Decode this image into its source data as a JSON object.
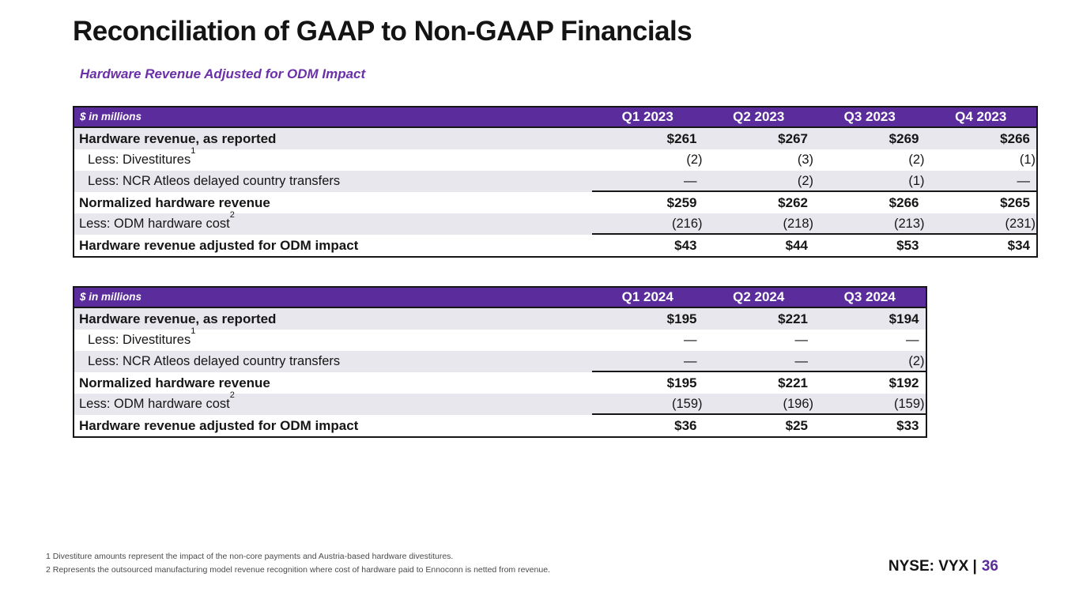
{
  "slide": {
    "title": "Reconciliation of GAAP to Non-GAAP Financials",
    "subtitle": "Hardware Revenue Adjusted for ODM Impact",
    "footnotes": [
      "1 Divestiture amounts represent the impact of the non-core payments and Austria-based hardware divestitures.",
      "2 Represents the outsourced manufacturing model revenue recognition where cost of hardware paid to Ennoconn is netted from revenue."
    ],
    "footer": {
      "ticker": "NYSE: VYX |",
      "page": "36"
    }
  },
  "colors": {
    "brand_purple": "#5B2D9C",
    "subtitle_purple": "#6B2FA8",
    "row_alt": "#E8E7ED",
    "border": "#161616",
    "footnote_gray": "#4a4a4a"
  },
  "tables": [
    {
      "unit_label": "$ in millions",
      "columns": [
        "Q1 2023",
        "Q2 2023",
        "Q3 2023",
        "Q4 2023"
      ],
      "rows": [
        {
          "label": "Hardware revenue, as reported",
          "sup": "",
          "style": "bold",
          "indent": false,
          "underline_after": false,
          "values": [
            "$261",
            "$267",
            "$269",
            "$266"
          ]
        },
        {
          "label": "Less: Divestitures",
          "sup": "1",
          "style": "normal",
          "indent": true,
          "underline_after": false,
          "values": [
            "(2)",
            "(3)",
            "(2)",
            "(1)"
          ]
        },
        {
          "label": "Less: NCR Atleos delayed country transfers",
          "sup": "",
          "style": "normal",
          "indent": true,
          "underline_after": true,
          "values": [
            "—",
            "(2)",
            "(1)",
            "—"
          ]
        },
        {
          "label": "Normalized hardware revenue",
          "sup": "",
          "style": "bold",
          "indent": false,
          "underline_after": false,
          "values": [
            "$259",
            "$262",
            "$266",
            "$265"
          ]
        },
        {
          "label": "Less: ODM hardware cost",
          "sup": "2",
          "style": "normal",
          "indent": false,
          "underline_after": true,
          "values": [
            "(216)",
            "(218)",
            "(213)",
            "(231)"
          ]
        },
        {
          "label": "Hardware revenue adjusted for ODM impact",
          "sup": "",
          "style": "bold",
          "indent": false,
          "underline_after": false,
          "values": [
            "$43",
            "$44",
            "$53",
            "$34"
          ]
        }
      ]
    },
    {
      "unit_label": "$ in millions",
      "columns": [
        "Q1 2024",
        "Q2 2024",
        "Q3 2024"
      ],
      "rows": [
        {
          "label": "Hardware revenue, as reported",
          "sup": "",
          "style": "bold",
          "indent": false,
          "underline_after": false,
          "values": [
            "$195",
            "$221",
            "$194"
          ]
        },
        {
          "label": "Less: Divestitures",
          "sup": "1",
          "style": "normal",
          "indent": true,
          "underline_after": false,
          "values": [
            "—",
            "—",
            "—"
          ]
        },
        {
          "label": "Less: NCR Atleos delayed country transfers",
          "sup": "",
          "style": "normal",
          "indent": true,
          "underline_after": true,
          "values": [
            "—",
            "—",
            "(2)"
          ]
        },
        {
          "label": "Normalized hardware revenue",
          "sup": "",
          "style": "bold",
          "indent": false,
          "underline_after": false,
          "values": [
            "$195",
            "$221",
            "$192"
          ]
        },
        {
          "label": "Less: ODM hardware cost",
          "sup": "2",
          "style": "normal",
          "indent": false,
          "underline_after": true,
          "values": [
            "(159)",
            "(196)",
            "(159)"
          ]
        },
        {
          "label": "Hardware revenue adjusted for ODM impact",
          "sup": "",
          "style": "bold",
          "indent": false,
          "underline_after": false,
          "values": [
            "$36",
            "$25",
            "$33"
          ]
        }
      ]
    }
  ]
}
